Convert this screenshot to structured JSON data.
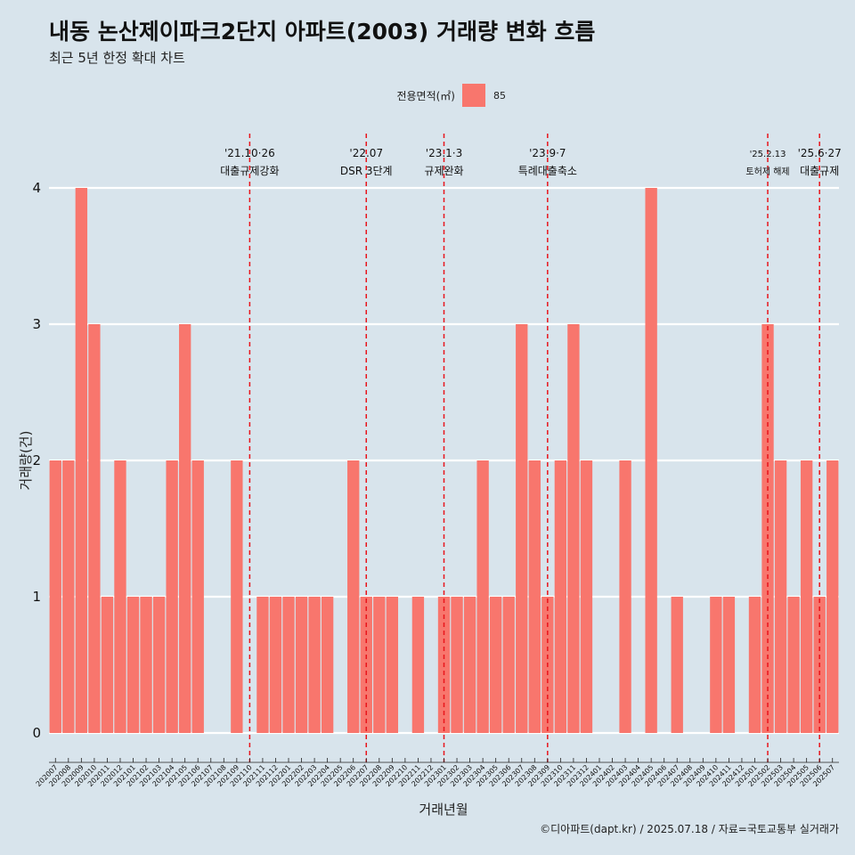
{
  "header": {
    "title": "내동 논산제이파크2단지 아파트(2003) 거래량 변화 흐름",
    "subtitle": "최근 5년 한정 확대 차트"
  },
  "legend": {
    "title": "전용면적(㎡)",
    "label": "85",
    "color": "#f8766d"
  },
  "caption": "©디아파트(dapt.kr) / 2025.07.18 / 자료=국토교통부 실거래가",
  "colors": {
    "background": "#d8e4ec",
    "bar": "#f8766d",
    "event_line": "#e8151c",
    "grid": "#ffffff"
  },
  "chart_data": {
    "type": "bar",
    "xlabel": "거래년월",
    "ylabel": "거래량(건)",
    "ylim": [
      0,
      4
    ],
    "yticks": [
      0,
      1,
      2,
      3,
      4
    ],
    "grid": "horizontal-major",
    "legend_position": "top",
    "categories": [
      "202007",
      "202008",
      "202009",
      "202010",
      "202011",
      "202012",
      "202101",
      "202102",
      "202103",
      "202104",
      "202105",
      "202106",
      "202107",
      "202108",
      "202109",
      "202110",
      "202111",
      "202112",
      "202201",
      "202202",
      "202203",
      "202204",
      "202205",
      "202206",
      "202207",
      "202208",
      "202209",
      "202210",
      "202211",
      "202212",
      "202301",
      "202302",
      "202303",
      "202304",
      "202305",
      "202306",
      "202307",
      "202308",
      "202309",
      "202310",
      "202311",
      "202312",
      "202401",
      "202402",
      "202403",
      "202404",
      "202405",
      "202406",
      "202407",
      "202408",
      "202409",
      "202410",
      "202411",
      "202412",
      "202501",
      "202502",
      "202503",
      "202504",
      "202505",
      "202506",
      "202507"
    ],
    "series": [
      {
        "name": "85",
        "values": [
          2,
          2,
          4,
          3,
          1,
          2,
          1,
          1,
          1,
          2,
          3,
          2,
          0,
          0,
          2,
          0,
          1,
          1,
          1,
          1,
          1,
          1,
          0,
          2,
          1,
          1,
          1,
          0,
          1,
          0,
          1,
          1,
          1,
          2,
          1,
          1,
          3,
          2,
          1,
          2,
          3,
          2,
          0,
          0,
          2,
          0,
          4,
          0,
          1,
          0,
          0,
          1,
          1,
          0,
          1,
          3,
          2,
          1,
          2,
          1,
          2
        ]
      }
    ],
    "annotations": [
      {
        "at": "202110",
        "date": "'21.10·26",
        "text": "대출규제강화",
        "style": "normal"
      },
      {
        "at": "202207",
        "date": "'22.07",
        "text": "DSR 3단계",
        "style": "normal"
      },
      {
        "at": "202301",
        "date": "'23.1·3",
        "text": "규제완화",
        "style": "normal"
      },
      {
        "at": "202309",
        "date": "'23.9·7",
        "text": "특례대출축소",
        "style": "normal"
      },
      {
        "at": "202502",
        "date": "'25.2.13",
        "text": "토허제 해제",
        "style": "small"
      },
      {
        "at": "202506",
        "date": "'25.6·27",
        "text": "대출규제",
        "style": "normal"
      }
    ]
  }
}
